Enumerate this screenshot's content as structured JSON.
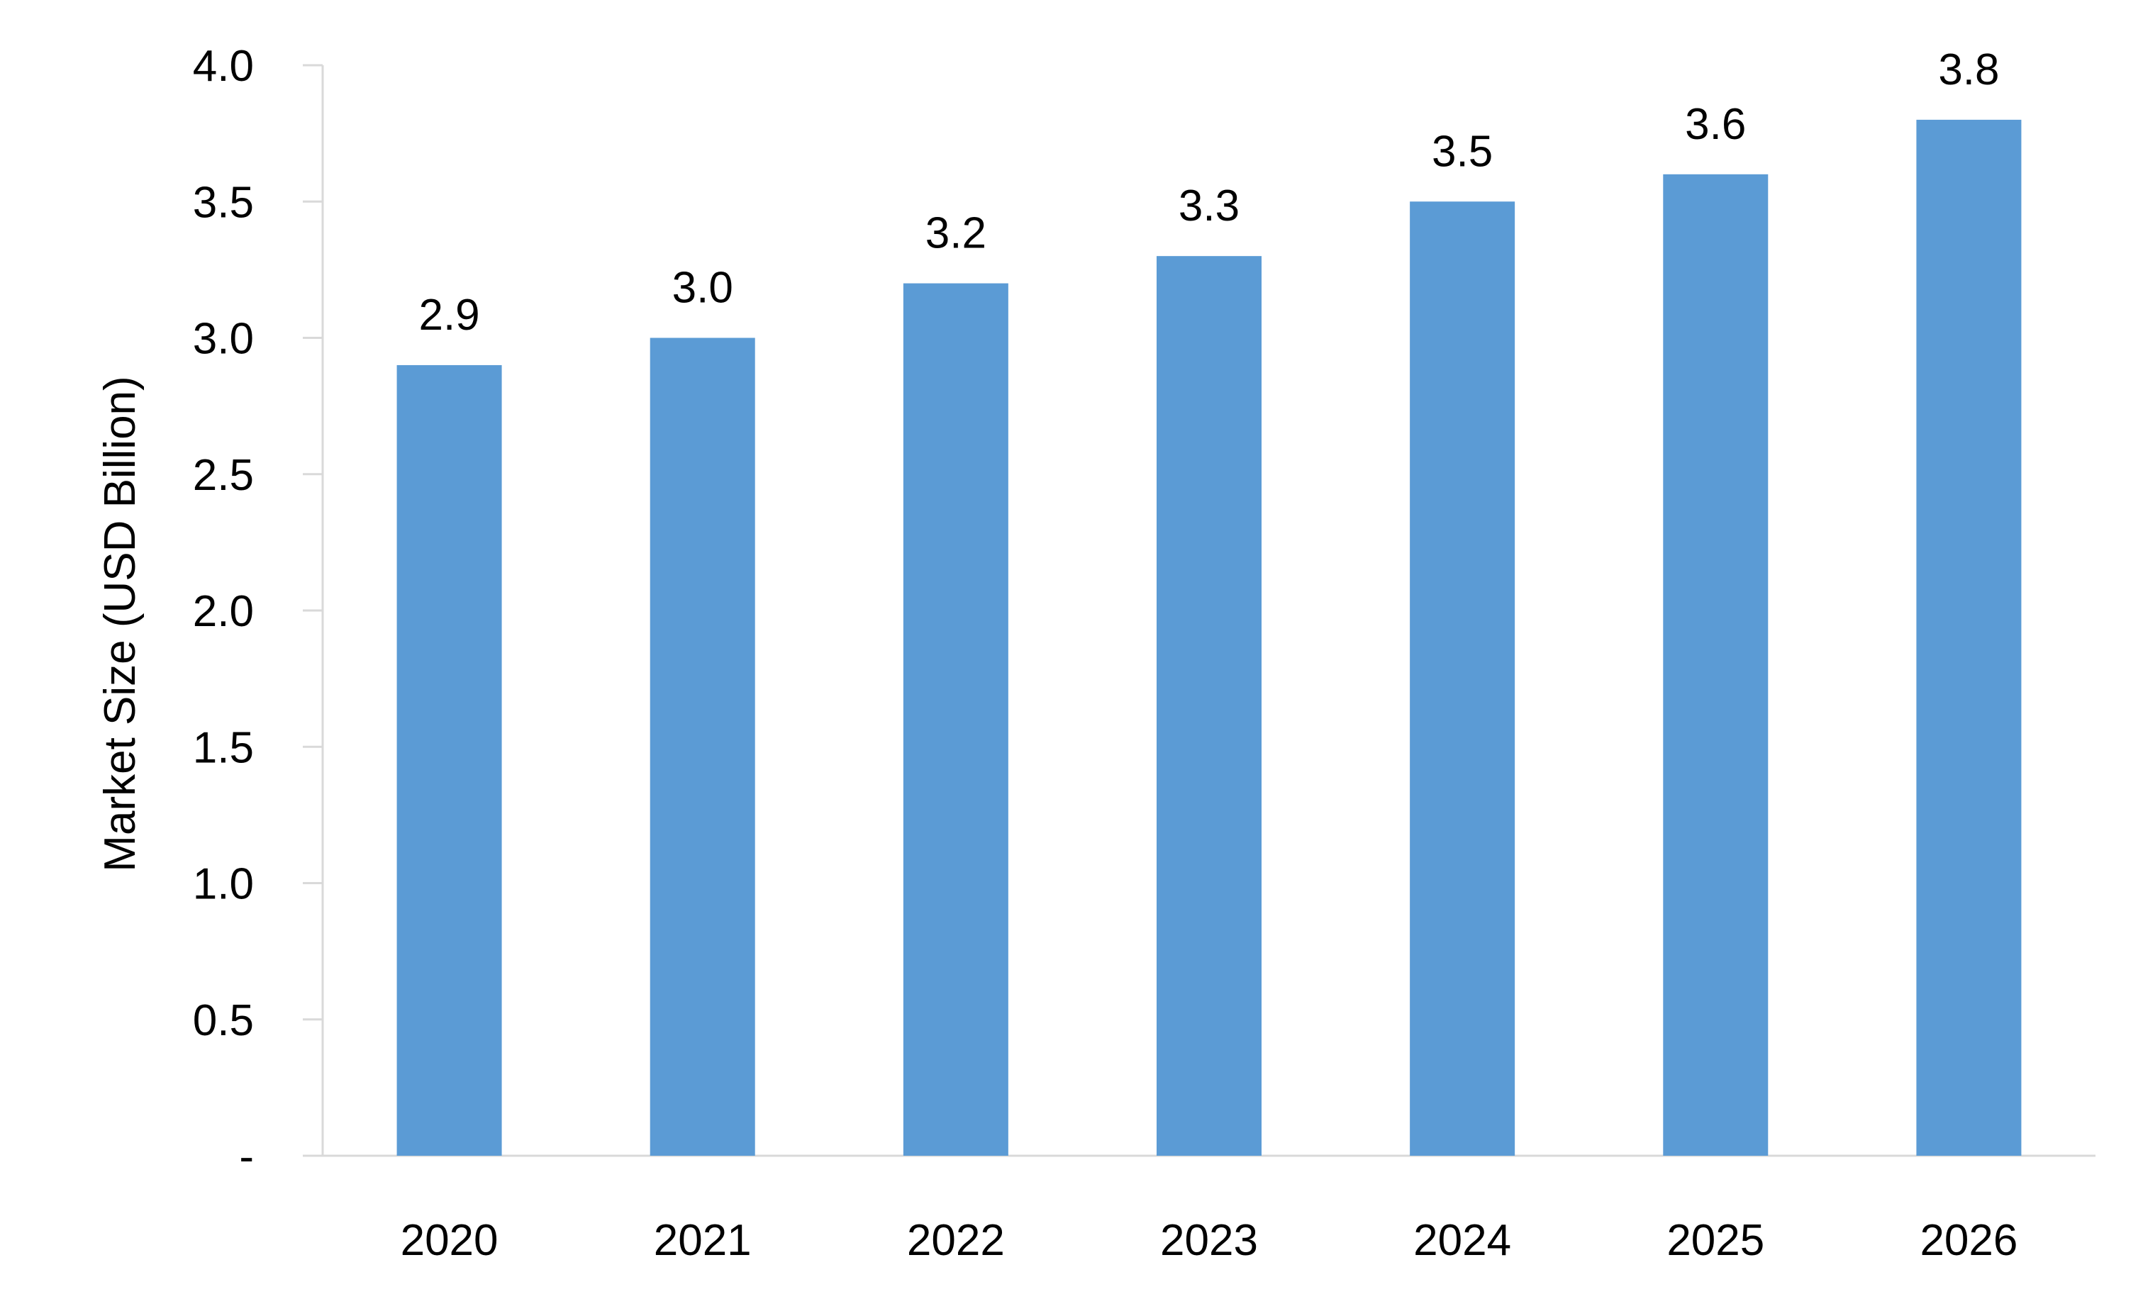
{
  "colors": {
    "bar": "#5B9BD5",
    "axis": "#D9D9D9",
    "text": "#000000",
    "background": "#FFFFFF"
  },
  "chart_data": {
    "type": "bar",
    "title": "",
    "xlabel": "",
    "ylabel": "Market Size (USD Billion)",
    "categories": [
      "2020",
      "2021",
      "2022",
      "2023",
      "2024",
      "2025",
      "2026"
    ],
    "series": [
      {
        "values": [
          2.9,
          3.0,
          3.2,
          3.3,
          3.5,
          3.6,
          3.8
        ]
      }
    ],
    "value_labels": [
      "2.9",
      "3.0",
      "3.2",
      "3.3",
      "3.5",
      "3.6",
      "3.8"
    ],
    "ylim": [
      0,
      4.0
    ],
    "yticks": [
      0,
      0.5,
      1.0,
      1.5,
      2.0,
      2.5,
      3.0,
      3.5,
      4.0
    ],
    "ytick_labels": [
      "-",
      "0.5",
      "1.0",
      "1.5",
      "2.0",
      "2.5",
      "3.0",
      "3.5",
      "4.0"
    ],
    "grid": false,
    "legend": "none"
  }
}
